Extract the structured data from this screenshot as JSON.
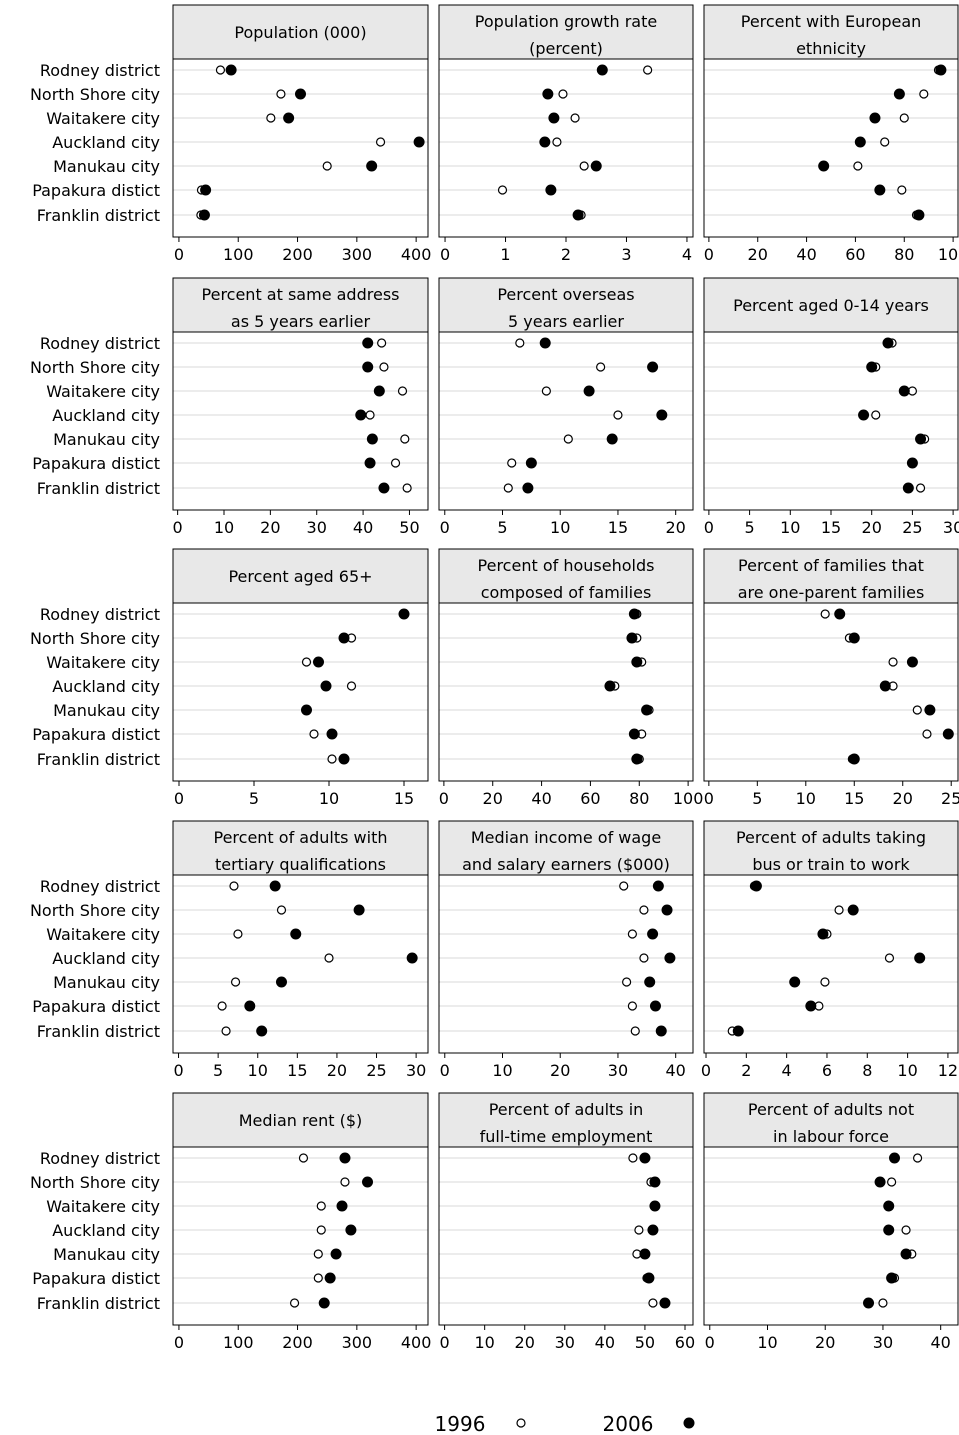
{
  "chart_data": {
    "type": "scatter",
    "rows": [
      "Rodney district",
      "North Shore city",
      "Waitakere city",
      "Auckland city",
      "Manukau city",
      "Papakura distict",
      "Franklin district"
    ],
    "legend": [
      {
        "label": "1996",
        "marker": "open-circle"
      },
      {
        "label": "2006",
        "marker": "filled-circle"
      }
    ],
    "legend_position": "bottom",
    "grid": true,
    "panels": [
      {
        "title": [
          "Population (000)"
        ],
        "xlim": [
          -10,
          420
        ],
        "ticks": [
          0,
          100,
          200,
          300,
          400
        ],
        "tick_labels": [
          "0",
          "100",
          "200",
          "300",
          "400"
        ],
        "v1996": [
          70,
          172,
          155,
          340,
          250,
          38,
          37
        ],
        "v2006": [
          88,
          205,
          185,
          405,
          325,
          45,
          43
        ]
      },
      {
        "title": [
          "Population growth rate",
          "(percent)"
        ],
        "xlim": [
          -0.1,
          4.1
        ],
        "ticks": [
          0,
          1,
          2,
          3,
          4
        ],
        "tick_labels": [
          "0",
          "1",
          "2",
          "3",
          "4"
        ],
        "v1996": [
          3.35,
          1.95,
          2.15,
          1.85,
          2.3,
          0.95,
          2.25
        ],
        "v2006": [
          2.6,
          1.7,
          1.8,
          1.65,
          2.5,
          1.75,
          2.2
        ]
      },
      {
        "title": [
          "Percent with European",
          "ethnicity"
        ],
        "xlim": [
          -2,
          102
        ],
        "ticks": [
          0,
          20,
          40,
          60,
          80,
          100
        ],
        "tick_labels": [
          "0",
          "20",
          "40",
          "60",
          "80",
          "100"
        ],
        "v1996": [
          94,
          88,
          80,
          72,
          61,
          79,
          85
        ],
        "v2006": [
          95,
          78,
          68,
          62,
          47,
          70,
          86
        ]
      },
      {
        "title": [
          "Percent at same address",
          "as 5 years earlier"
        ],
        "xlim": [
          -1,
          54
        ],
        "ticks": [
          0,
          10,
          20,
          30,
          40,
          50
        ],
        "tick_labels": [
          "0",
          "10",
          "20",
          "30",
          "40",
          "50"
        ],
        "v1996": [
          44,
          44.5,
          48.5,
          41.5,
          49,
          47,
          49.5
        ],
        "v2006": [
          41,
          41,
          43.5,
          39.5,
          42,
          41.5,
          44.5
        ]
      },
      {
        "title": [
          "Percent overseas",
          "5 years earlier"
        ],
        "xlim": [
          -0.5,
          21.5
        ],
        "ticks": [
          0,
          5,
          10,
          15,
          20
        ],
        "tick_labels": [
          "0",
          "5",
          "10",
          "15",
          "20"
        ],
        "v1996": [
          6.5,
          13.5,
          8.8,
          15,
          10.7,
          5.8,
          5.5
        ],
        "v2006": [
          8.7,
          18,
          12.5,
          18.8,
          14.5,
          7.5,
          7.2
        ]
      },
      {
        "title": [
          "Percent aged 0-14 years"
        ],
        "xlim": [
          -0.6,
          30.6
        ],
        "ticks": [
          0,
          5,
          10,
          15,
          20,
          25,
          30
        ],
        "tick_labels": [
          "0",
          "5",
          "10",
          "15",
          "20",
          "25",
          "30"
        ],
        "v1996": [
          22.5,
          20.5,
          25,
          20.5,
          26.5,
          25,
          26
        ],
        "v2006": [
          22,
          20,
          24,
          19,
          26,
          25,
          24.5
        ]
      },
      {
        "title": [
          "Percent aged 65+"
        ],
        "xlim": [
          -0.4,
          16.6
        ],
        "ticks": [
          0,
          5,
          10,
          15
        ],
        "tick_labels": [
          "0",
          "5",
          "10",
          "15"
        ],
        "v1996": [
          15,
          11.5,
          8.5,
          11.5,
          8.5,
          9,
          10.2
        ],
        "v2006": [
          15,
          11,
          9.3,
          9.8,
          8.5,
          10.2,
          11
        ]
      },
      {
        "title": [
          "Percent of households",
          "composed of families"
        ],
        "xlim": [
          -2,
          102
        ],
        "ticks": [
          0,
          20,
          40,
          60,
          80,
          100
        ],
        "tick_labels": [
          "0",
          "20",
          "40",
          "60",
          "80",
          "100"
        ],
        "v1996": [
          79,
          79,
          81,
          70,
          84,
          81,
          80
        ],
        "v2006": [
          78,
          77,
          79,
          68,
          83,
          78,
          79
        ]
      },
      {
        "title": [
          "Percent of families that",
          "are one-parent families"
        ],
        "xlim": [
          -0.5,
          25.7
        ],
        "ticks": [
          0,
          5,
          10,
          15,
          20,
          25
        ],
        "tick_labels": [
          "0",
          "5",
          "10",
          "15",
          "20",
          "25"
        ],
        "v1996": [
          12,
          14.5,
          19,
          19,
          21.5,
          22.5,
          14.8
        ],
        "v2006": [
          13.5,
          15,
          21,
          18.2,
          22.8,
          24.7,
          15
        ]
      },
      {
        "title": [
          "Percent of adults with",
          "tertiary qualifications"
        ],
        "xlim": [
          -0.7,
          31.5
        ],
        "ticks": [
          0,
          5,
          10,
          15,
          20,
          25,
          30
        ],
        "tick_labels": [
          "0",
          "5",
          "10",
          "15",
          "20",
          "25",
          "30"
        ],
        "v1996": [
          7,
          13,
          7.5,
          19,
          7.2,
          5.5,
          6
        ],
        "v2006": [
          12.2,
          22.8,
          14.8,
          29.5,
          13,
          9,
          10.5
        ]
      },
      {
        "title": [
          "Median income of wage",
          "and salary earners ($000)"
        ],
        "xlim": [
          -1,
          43
        ],
        "ticks": [
          0,
          10,
          20,
          30,
          40
        ],
        "tick_labels": [
          "0",
          "10",
          "20",
          "30",
          "40"
        ],
        "v1996": [
          31,
          34.5,
          32.5,
          34.5,
          31.5,
          32.5,
          33
        ],
        "v2006": [
          37,
          38.5,
          36,
          39,
          35.5,
          36.5,
          37.5
        ]
      },
      {
        "title": [
          "Percent of adults taking",
          "bus or train to work"
        ],
        "xlim": [
          -0.1,
          12.5
        ],
        "ticks": [
          0,
          2,
          4,
          6,
          8,
          10,
          12
        ],
        "tick_labels": [
          "0",
          "2",
          "4",
          "6",
          "8",
          "10",
          "12"
        ],
        "v1996": [
          2.4,
          6.6,
          6,
          9.1,
          5.9,
          5.6,
          1.3
        ],
        "v2006": [
          2.5,
          7.3,
          5.8,
          10.6,
          4.4,
          5.2,
          1.6
        ]
      },
      {
        "title": [
          "Median rent ($)"
        ],
        "xlim": [
          -10,
          420
        ],
        "ticks": [
          0,
          100,
          200,
          300,
          400
        ],
        "tick_labels": [
          "0",
          "100",
          "200",
          "300",
          "400"
        ],
        "v1996": [
          210,
          280,
          240,
          240,
          235,
          235,
          195
        ],
        "v2006": [
          280,
          318,
          275,
          290,
          265,
          255,
          245
        ]
      },
      {
        "title": [
          "Percent of adults in",
          "full-time employment"
        ],
        "xlim": [
          -1.4,
          62
        ],
        "ticks": [
          0,
          10,
          20,
          30,
          40,
          50,
          60
        ],
        "tick_labels": [
          "0",
          "10",
          "20",
          "30",
          "40",
          "50",
          "60"
        ],
        "v1996": [
          47,
          51.5,
          52.5,
          48.5,
          48,
          50.5,
          52
        ],
        "v2006": [
          50,
          52.5,
          52.5,
          52,
          50,
          51,
          55
        ]
      },
      {
        "title": [
          "Percent of adults not",
          "in labour force"
        ],
        "xlim": [
          -1,
          43
        ],
        "ticks": [
          0,
          10,
          20,
          30,
          40
        ],
        "tick_labels": [
          "0",
          "10",
          "20",
          "30",
          "40"
        ],
        "v1996": [
          36,
          31.5,
          31,
          34,
          35,
          32,
          30
        ],
        "v2006": [
          32,
          29.5,
          31,
          31,
          34,
          31.5,
          27.5
        ]
      }
    ]
  }
}
